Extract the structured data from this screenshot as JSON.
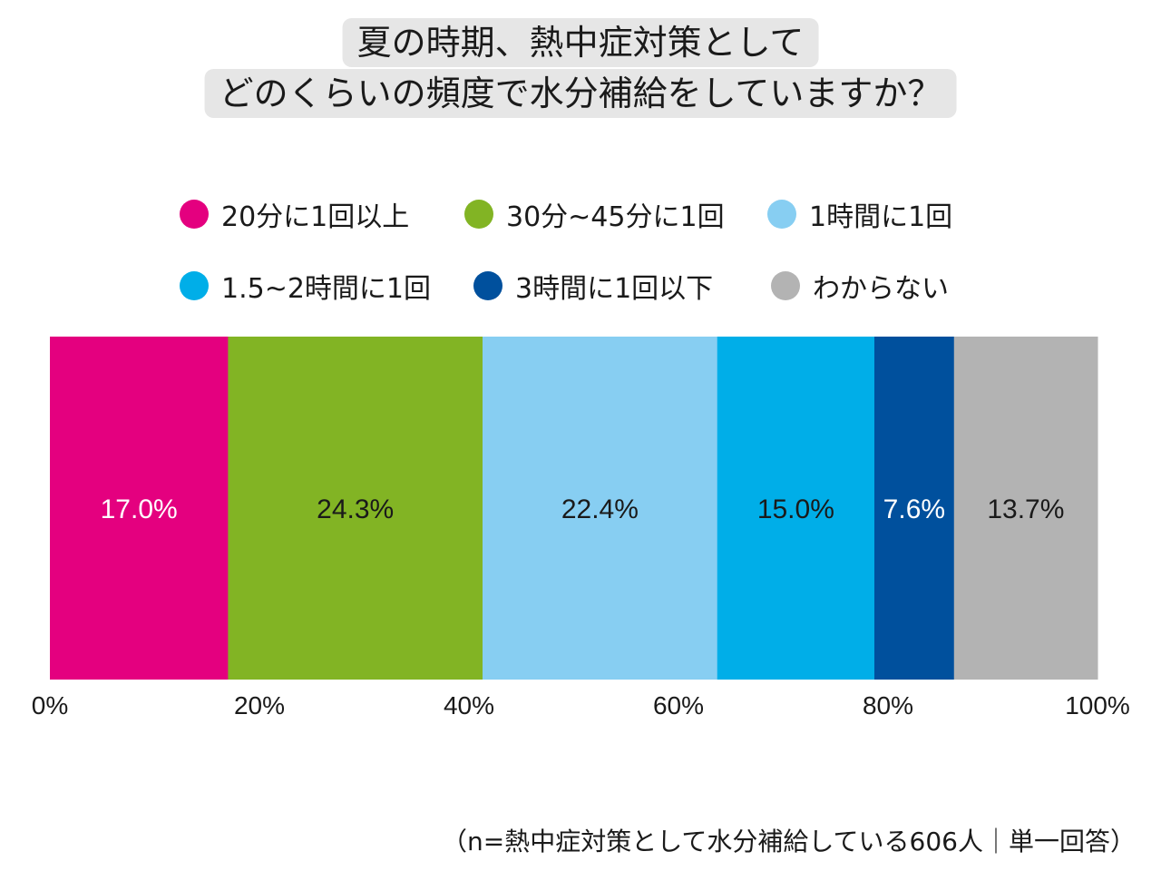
{
  "title": {
    "line1": "夏の時期、熱中症対策として",
    "line2": "どのくらいの頻度で水分補給をしていますか？"
  },
  "footnote": "（n=熱中症対策として水分補給している606人｜単一回答）",
  "chart_data": {
    "type": "bar",
    "orientation": "horizontal",
    "stacked": true,
    "xlim": [
      0,
      100
    ],
    "x_ticks": [
      "0%",
      "20%",
      "40%",
      "60%",
      "80%",
      "100%"
    ],
    "legend_position": "top",
    "series": [
      {
        "name": "20分に1回以上",
        "value": 17.0,
        "label": "17.0%",
        "color": "#e4007f",
        "label_color": "#ffffff"
      },
      {
        "name": "30分~45分に1回",
        "value": 24.3,
        "label": "24.3%",
        "color": "#82b424",
        "label_color": "#1a1a1a"
      },
      {
        "name": "1時間に1回",
        "value": 22.4,
        "label": "22.4%",
        "color": "#87cef2",
        "label_color": "#1a1a1a"
      },
      {
        "name": "1.5~2時間に1回",
        "value": 15.0,
        "label": "15.0%",
        "color": "#00aee8",
        "label_color": "#1a1a1a"
      },
      {
        "name": "3時間に1回以下",
        "value": 7.6,
        "label": "7.6%",
        "color": "#00509d",
        "label_color": "#ffffff"
      },
      {
        "name": "わからない",
        "value": 13.7,
        "label": "13.7%",
        "color": "#b3b3b3",
        "label_color": "#1a1a1a"
      }
    ]
  }
}
